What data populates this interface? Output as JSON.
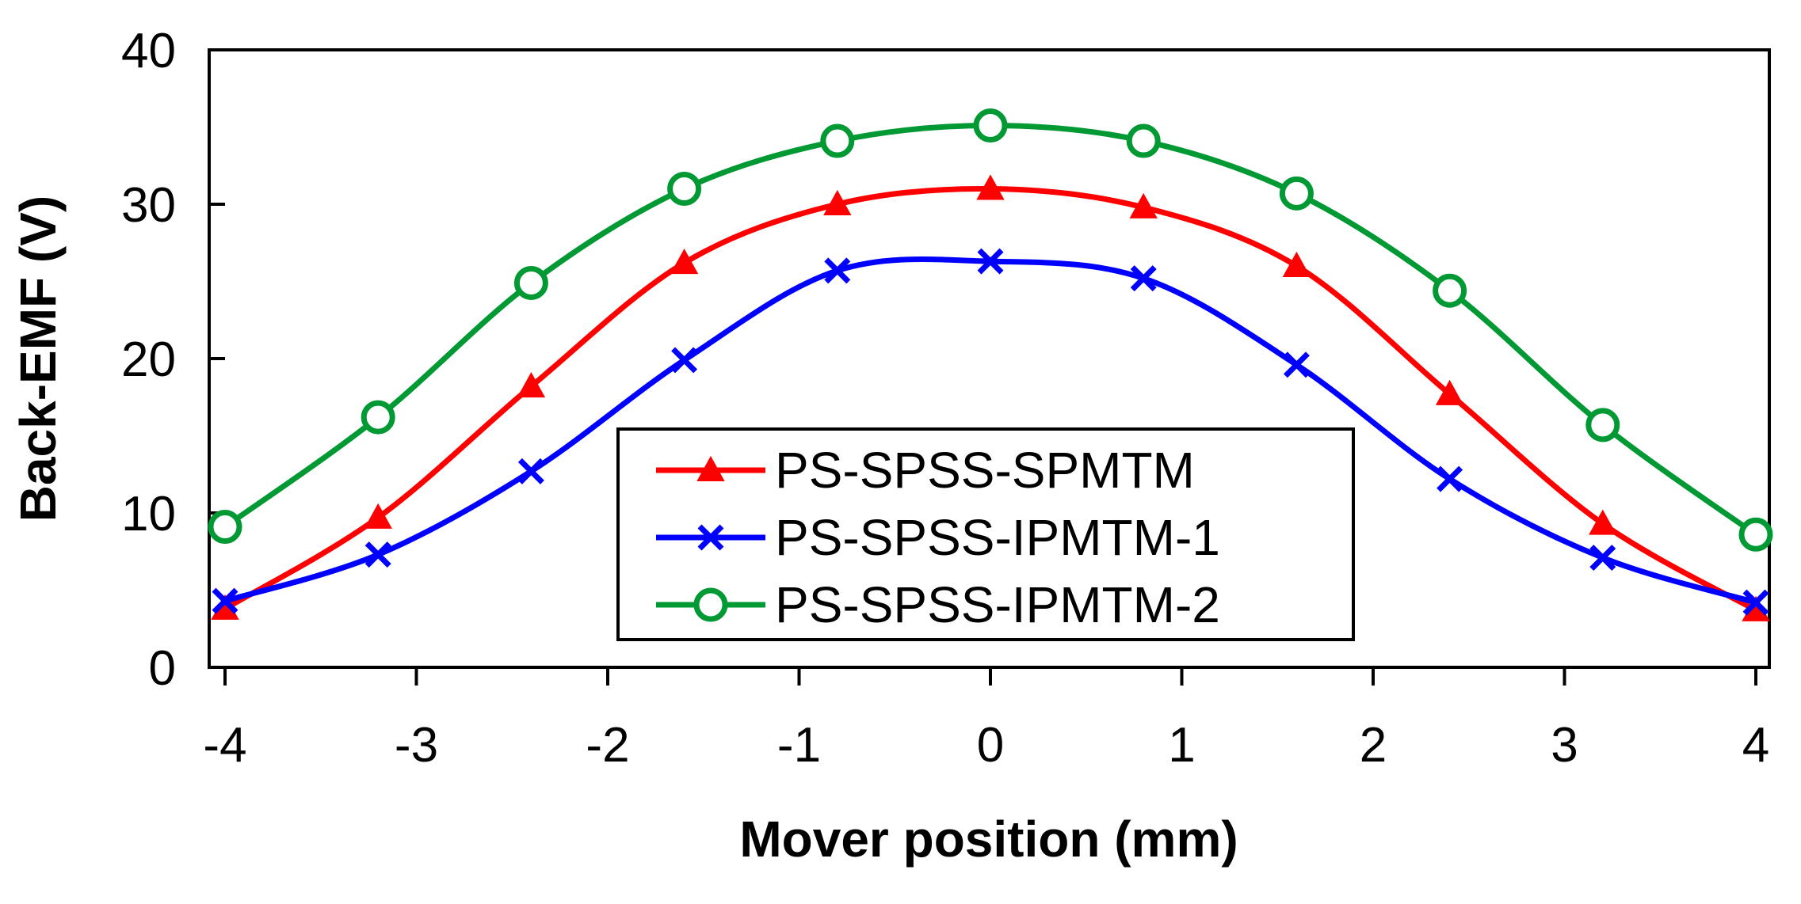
{
  "chart_data": {
    "type": "line",
    "xlabel": "Mover position (mm)",
    "ylabel": "Back-EMF (V)",
    "xlim": [
      -4,
      4
    ],
    "ylim": [
      0,
      40
    ],
    "xticks": [
      -4,
      -3,
      -2,
      -1,
      0,
      1,
      2,
      3,
      4
    ],
    "yticks": [
      0,
      10,
      20,
      30,
      40
    ],
    "x_tick_labels": [
      "-4",
      "-3",
      "-2",
      "-1",
      "0",
      "1",
      "2",
      "3",
      "4"
    ],
    "y_tick_labels": [
      "0",
      "10",
      "20",
      "30",
      "40"
    ],
    "x": [
      -4,
      -3.2,
      -2.4,
      -1.6,
      -0.8,
      0,
      0.8,
      1.6,
      2.4,
      3.2,
      4
    ],
    "grid": false,
    "legend_position": "center-bottom",
    "series": [
      {
        "name": "PS-SPSS-SPMTM",
        "color": "#ff0000",
        "marker": "triangle",
        "values": [
          3.8,
          9.7,
          18.2,
          26.2,
          30.0,
          31.0,
          29.8,
          26.0,
          17.7,
          9.3,
          3.7
        ]
      },
      {
        "name": "PS-SPSS-IPMTM-1",
        "color": "#0000ff",
        "marker": "x",
        "values": [
          4.3,
          7.3,
          12.7,
          19.9,
          25.7,
          26.3,
          25.2,
          19.6,
          12.2,
          7.1,
          4.2
        ]
      },
      {
        "name": "PS-SPSS-IPMTM-2",
        "color": "#009933",
        "marker": "circle",
        "values": [
          9.1,
          16.2,
          24.9,
          31.0,
          34.1,
          35.1,
          34.1,
          30.7,
          24.4,
          15.7,
          8.6
        ]
      }
    ]
  }
}
